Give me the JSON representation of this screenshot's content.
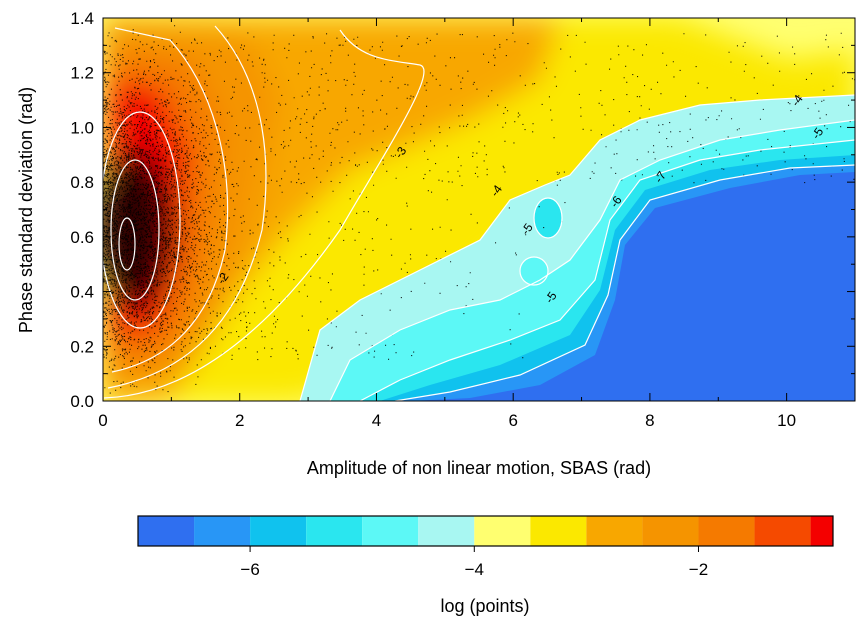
{
  "chart_data": {
    "type": "heatmap",
    "title": "",
    "xlabel": "Amplitude of non linear motion, SBAS (rad)",
    "ylabel": "Phase standard deviation (rad)",
    "xlim": [
      0,
      11
    ],
    "ylim": [
      0,
      1.4
    ],
    "x_ticks": [
      "0",
      "2",
      "4",
      "6",
      "8",
      "10"
    ],
    "y_ticks": [
      "0.0",
      "0.2",
      "0.4",
      "0.6",
      "0.8",
      "1.0",
      "1.2",
      "1.4"
    ],
    "x_tick_values": [
      0,
      2,
      4,
      6,
      8,
      10
    ],
    "y_tick_values": [
      0,
      0.2,
      0.4,
      0.6,
      0.8,
      1.0,
      1.2,
      1.4
    ],
    "colorbar": {
      "label": "log (points)",
      "ticks": [
        "−6",
        "−4",
        "−2"
      ],
      "tick_values": [
        -6,
        -4,
        -2
      ],
      "range": [
        -7.0,
        -0.8
      ],
      "bins": [
        {
          "from": -7.0,
          "to": -6.5,
          "color": "#2f6ff0"
        },
        {
          "from": -6.5,
          "to": -6.0,
          "color": "#2896f6"
        },
        {
          "from": -6.0,
          "to": -5.5,
          "color": "#10c2ee"
        },
        {
          "from": -5.5,
          "to": -5.0,
          "color": "#2ae6ef"
        },
        {
          "from": -5.0,
          "to": -4.5,
          "color": "#5cf8f6"
        },
        {
          "from": -4.5,
          "to": -4.0,
          "color": "#a8f7f2"
        },
        {
          "from": -4.0,
          "to": -3.5,
          "color": "#ffff70"
        },
        {
          "from": -3.5,
          "to": -3.0,
          "color": "#fbe800"
        },
        {
          "from": -3.0,
          "to": -2.5,
          "color": "#f8a700"
        },
        {
          "from": -2.5,
          "to": -2.0,
          "color": "#f59400"
        },
        {
          "from": -2.0,
          "to": -1.5,
          "color": "#f57a00"
        },
        {
          "from": -1.5,
          "to": -1.0,
          "color": "#f54a00"
        },
        {
          "from": -1.0,
          "to": -0.8,
          "color": "#f40000"
        }
      ]
    },
    "contour_labels": [
      {
        "text": "-2",
        "x": 1.8,
        "y": 0.44
      },
      {
        "text": "-3",
        "x": 4.4,
        "y": 0.9
      },
      {
        "text": "-4",
        "x": 5.8,
        "y": 0.76
      },
      {
        "text": "-4",
        "x": 10.2,
        "y": 1.09
      },
      {
        "text": "-5",
        "x": 6.25,
        "y": 0.62
      },
      {
        "text": "-5",
        "x": 6.6,
        "y": 0.37
      },
      {
        "text": "-5",
        "x": 10.5,
        "y": 0.97
      },
      {
        "text": "-6",
        "x": 7.55,
        "y": 0.72
      },
      {
        "text": "-7",
        "x": 8.2,
        "y": 0.81
      }
    ]
  }
}
